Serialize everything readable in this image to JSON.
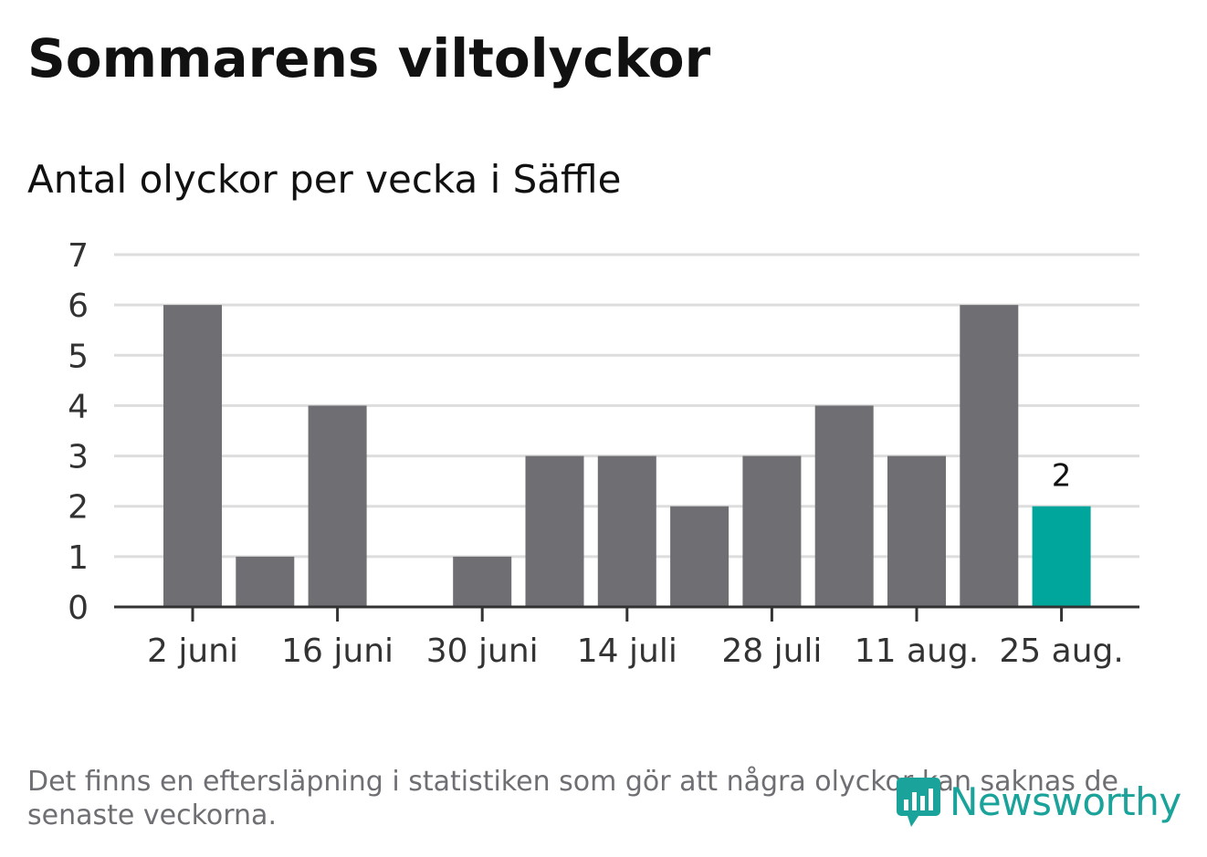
{
  "title": "Sommarens viltolyckor",
  "subtitle": "Antal olyckor per vecka i Säffle",
  "footnote": "Det finns en eftersläpning i statistiken som gör att några olyckor kan saknas de senaste veckorna.",
  "logo": {
    "text": "Newsworthy",
    "icon": "newsworthy-logo-icon"
  },
  "colors": {
    "bar": "#6f6e73",
    "highlight": "#00a69c",
    "grid": "#dddddd",
    "axis": "#333333",
    "text": "#333333"
  },
  "chart_data": {
    "type": "bar",
    "title": "Sommarens viltolyckor",
    "subtitle": "Antal olyckor per vecka i Säffle",
    "xlabel": "",
    "ylabel": "",
    "ylim": [
      0,
      7
    ],
    "yticks": [
      0,
      1,
      2,
      3,
      4,
      5,
      6,
      7
    ],
    "x_tick_labels": [
      "2 juni",
      "16 juni",
      "30 juni",
      "14 juli",
      "28 juli",
      "11 aug.",
      "25 aug."
    ],
    "x_tick_positions": [
      0,
      2,
      4,
      6,
      8,
      10,
      12
    ],
    "values": [
      6,
      1,
      4,
      0,
      1,
      3,
      3,
      2,
      3,
      4,
      3,
      6,
      2
    ],
    "highlight_index": 12,
    "data_labels": [
      {
        "index": 12,
        "text": "2"
      }
    ],
    "grid": true
  }
}
